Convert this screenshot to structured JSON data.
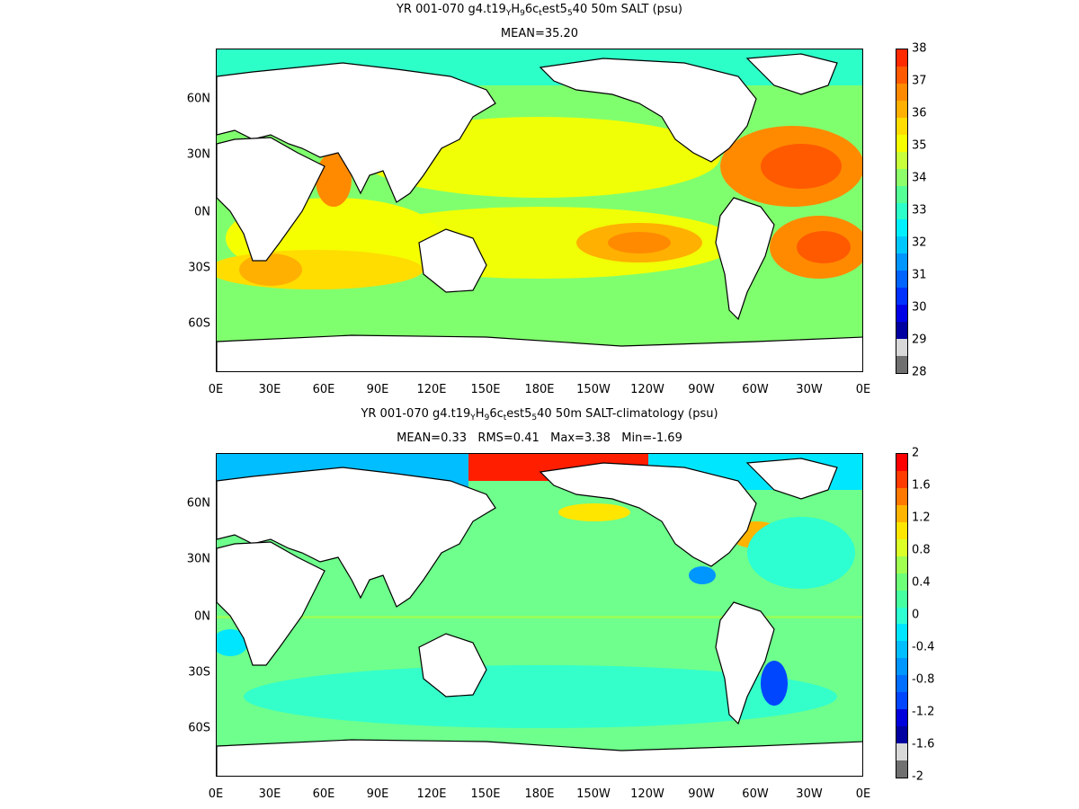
{
  "panels": [
    {
      "title_parts": {
        "pre": "YR 001-070 g4.t19",
        "s1": "Y",
        "m1": "H",
        "s2": "9",
        "m2": "6c",
        "s3": "t",
        "m3": "est5",
        "s4": "5",
        "post": "40 50m SALT (psu)"
      },
      "subtitle": "MEAN=35.20",
      "colorbar": {
        "labels": [
          "38",
          "37",
          "36",
          "35",
          "34",
          "33",
          "32",
          "31",
          "30",
          "29",
          "28"
        ],
        "colors": [
          "#ff2a00",
          "#ff5a00",
          "#ff8a00",
          "#ffb000",
          "#ffdd00",
          "#f5ff00",
          "#c8ff3a",
          "#8cff6a",
          "#55ff96",
          "#2dffc8",
          "#00f0ff",
          "#00c8ff",
          "#0096ff",
          "#0064ff",
          "#0032ff",
          "#0000e6",
          "#0000a0",
          "#d8d8d8",
          "#707070"
        ]
      },
      "ylabels": [
        "60N",
        "30N",
        "0N",
        "30S",
        "60S"
      ],
      "xlabels": [
        "0E",
        "30E",
        "60E",
        "90E",
        "120E",
        "150E",
        "180E",
        "150W",
        "120W",
        "90W",
        "60W",
        "30W",
        "0E"
      ],
      "ocean_base": "#80ff6e"
    },
    {
      "title_parts": {
        "pre": "YR 001-070 g4.t19",
        "s1": "Y",
        "m1": "H",
        "s2": "9",
        "m2": "6c",
        "s3": "t",
        "m3": "est5",
        "s4": "5",
        "post": "40 50m SALT-climatology (psu)"
      },
      "subtitle": "MEAN=0.33   RMS=0.41   Max=3.38   Min=-1.69",
      "colorbar": {
        "labels": [
          "2",
          "1.6",
          "1.2",
          "0.8",
          "0.4",
          "0",
          "-0.4",
          "-0.8",
          "-1.2",
          "-1.6",
          "-2"
        ],
        "colors": [
          "#ff0000",
          "#ff3c00",
          "#ff7800",
          "#ffb400",
          "#ffe600",
          "#dcff28",
          "#a0ff50",
          "#6eff78",
          "#46ffa0",
          "#2dffd2",
          "#00e6ff",
          "#00beff",
          "#0096ff",
          "#006eff",
          "#0046ff",
          "#0000dc",
          "#0000a0",
          "#d8d8d8",
          "#707070"
        ]
      },
      "ylabels": [
        "60N",
        "30N",
        "0N",
        "30S",
        "60S"
      ],
      "xlabels": [
        "0E",
        "30E",
        "60E",
        "90E",
        "120E",
        "150E",
        "180E",
        "150W",
        "120W",
        "90W",
        "60W",
        "30W",
        "0E"
      ],
      "ocean_base": "#6eff8c"
    }
  ]
}
